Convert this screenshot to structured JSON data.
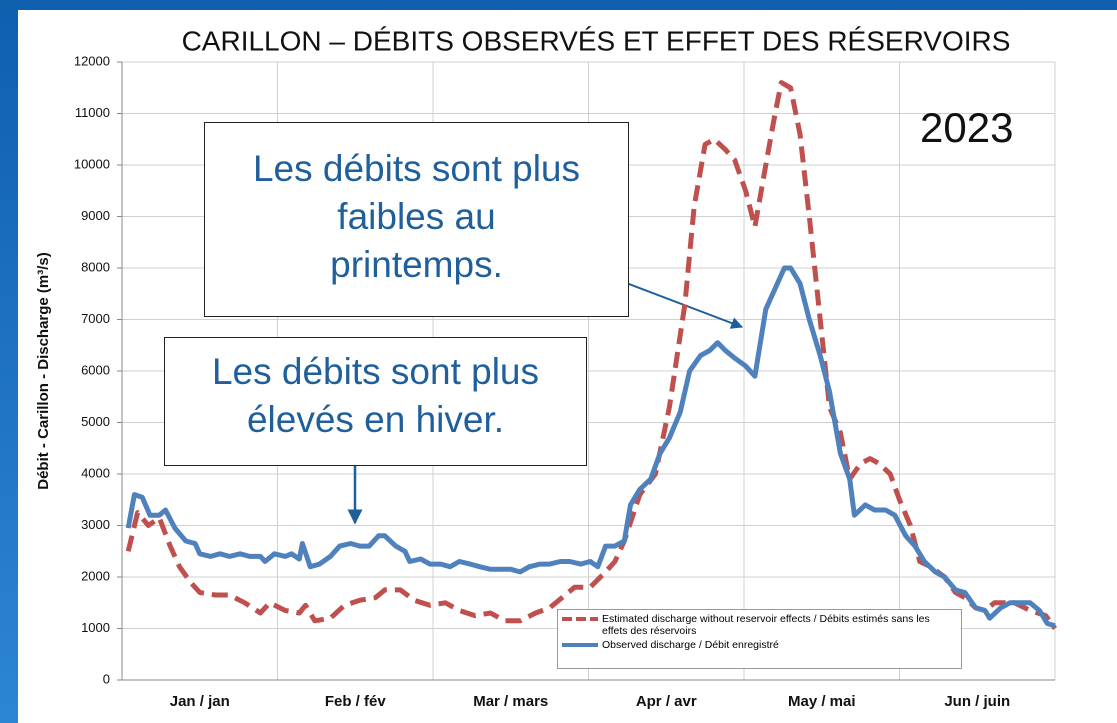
{
  "chart_data": {
    "type": "line",
    "title": "CARILLON – DÉBITS OBSERVÉS ET EFFET DES RÉSERVOIRS",
    "y_label": "Débit - Carillon - Discharge (m³/s)",
    "categories": [
      "Jan / jan",
      "Feb / fév",
      "Mar / mars",
      "Apr / avr",
      "May / mai",
      "Jun / juin"
    ],
    "xlim": [
      0,
      6
    ],
    "ylim": [
      0,
      12000
    ],
    "yticks": [
      0,
      1000,
      2000,
      3000,
      4000,
      5000,
      6000,
      7000,
      8000,
      9000,
      10000,
      11000,
      12000
    ],
    "grid": true,
    "legend": "bottom-right",
    "series": [
      {
        "name": "Estimated discharge without reservoir effects / Débits estimés sans les effets des réservoirs",
        "color": "#c0504d",
        "dashed": true,
        "x": [
          0.04,
          0.1,
          0.17,
          0.24,
          0.31,
          0.37,
          0.44,
          0.5,
          0.6,
          0.69,
          0.79,
          0.89,
          0.95,
          1.05,
          1.14,
          1.18,
          1.24,
          1.34,
          1.43,
          1.53,
          1.63,
          1.69,
          1.79,
          1.88,
          1.98,
          2.08,
          2.17,
          2.27,
          2.37,
          2.46,
          2.56,
          2.66,
          2.75,
          2.85,
          2.91,
          3.01,
          3.11,
          3.17,
          3.23,
          3.33,
          3.43,
          3.52,
          3.62,
          3.68,
          3.75,
          3.81,
          3.88,
          3.94,
          4.01,
          4.07,
          4.14,
          4.2,
          4.24,
          4.3,
          4.36,
          4.42,
          4.49,
          4.55,
          4.62,
          4.68,
          4.75,
          4.81,
          4.87,
          4.94,
          5.0,
          5.07,
          5.13,
          5.2,
          5.29,
          5.36,
          5.42,
          5.49,
          5.55,
          5.61,
          5.68,
          5.74,
          5.84,
          5.94,
          6.0
        ],
        "values": [
          2500,
          3250,
          3000,
          3150,
          2600,
          2200,
          1900,
          1700,
          1650,
          1650,
          1500,
          1300,
          1500,
          1350,
          1300,
          1450,
          1150,
          1200,
          1450,
          1550,
          1600,
          1750,
          1750,
          1550,
          1450,
          1500,
          1350,
          1250,
          1300,
          1150,
          1150,
          1300,
          1400,
          1650,
          1800,
          1800,
          2100,
          2300,
          2700,
          3600,
          4000,
          5300,
          7300,
          9200,
          10400,
          10500,
          10300,
          10100,
          9500,
          8800,
          10000,
          11000,
          11600,
          11500,
          10600,
          9000,
          7000,
          5300,
          4800,
          3900,
          4200,
          4300,
          4200,
          4000,
          3500,
          3000,
          2300,
          2200,
          2000,
          1700,
          1600,
          1400,
          1350,
          1500,
          1500,
          1500,
          1350,
          1250,
          1000
        ]
      },
      {
        "name": "Observed discharge / Débit enregistré",
        "color": "#4f81bd",
        "dashed": false,
        "x": [
          0.04,
          0.08,
          0.13,
          0.18,
          0.24,
          0.28,
          0.34,
          0.41,
          0.47,
          0.5,
          0.57,
          0.63,
          0.69,
          0.76,
          0.82,
          0.89,
          0.92,
          0.98,
          1.05,
          1.09,
          1.14,
          1.16,
          1.21,
          1.27,
          1.34,
          1.4,
          1.47,
          1.53,
          1.59,
          1.65,
          1.69,
          1.76,
          1.82,
          1.85,
          1.92,
          1.98,
          2.05,
          2.11,
          2.17,
          2.24,
          2.3,
          2.37,
          2.43,
          2.5,
          2.56,
          2.62,
          2.69,
          2.75,
          2.82,
          2.88,
          2.95,
          3.01,
          3.06,
          3.11,
          3.17,
          3.23,
          3.27,
          3.33,
          3.4,
          3.46,
          3.52,
          3.59,
          3.65,
          3.72,
          3.78,
          3.83,
          3.88,
          3.94,
          4.01,
          4.07,
          4.14,
          4.2,
          4.26,
          4.3,
          4.36,
          4.42,
          4.49,
          4.55,
          4.62,
          4.68,
          4.71,
          4.78,
          4.84,
          4.91,
          4.97,
          5.04,
          5.1,
          5.16,
          5.23,
          5.29,
          5.36,
          5.42,
          5.49,
          5.55,
          5.58,
          5.65,
          5.71,
          5.77,
          5.84,
          5.9,
          5.95,
          6.0
        ],
        "values": [
          2950,
          3600,
          3550,
          3200,
          3200,
          3300,
          2950,
          2700,
          2650,
          2450,
          2400,
          2450,
          2400,
          2450,
          2400,
          2400,
          2300,
          2450,
          2400,
          2450,
          2350,
          2650,
          2200,
          2250,
          2400,
          2600,
          2650,
          2600,
          2600,
          2800,
          2800,
          2600,
          2500,
          2300,
          2350,
          2250,
          2250,
          2200,
          2300,
          2250,
          2200,
          2150,
          2150,
          2150,
          2100,
          2200,
          2250,
          2250,
          2300,
          2300,
          2250,
          2300,
          2200,
          2600,
          2600,
          2700,
          3400,
          3700,
          3900,
          4400,
          4700,
          5200,
          6000,
          6300,
          6400,
          6550,
          6400,
          6250,
          6100,
          5900,
          7200,
          7600,
          8000,
          8000,
          7700,
          7000,
          6300,
          5600,
          4400,
          3900,
          3200,
          3400,
          3300,
          3300,
          3200,
          2800,
          2600,
          2300,
          2100,
          2000,
          1750,
          1700,
          1400,
          1350,
          1200,
          1400,
          1500,
          1500,
          1500,
          1350,
          1100,
          1050
        ]
      }
    ],
    "annotations": [
      {
        "lines": [
          "Les débits sont plus",
          "faibles au",
          "printemps."
        ]
      },
      {
        "lines": [
          "Les débits sont plus",
          "élevés en hiver."
        ]
      },
      {
        "lines": [
          "2023"
        ]
      }
    ]
  }
}
